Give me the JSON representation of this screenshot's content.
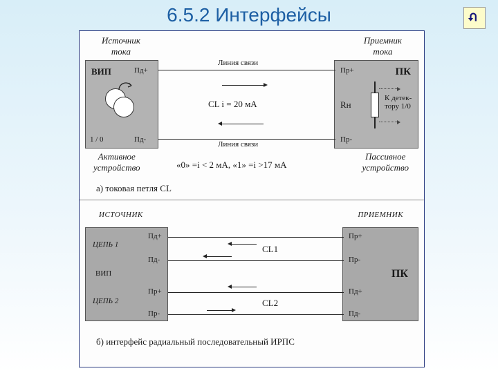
{
  "title": "6.5.2 Интерфейсы",
  "colors": {
    "title": "#1d5fa4",
    "bgTop": "#d8eef8",
    "bgBot": "#ffffff",
    "figBg": "#fdfdfd",
    "figBorder": "#2a3a80",
    "block": "#b3b3b3",
    "line": "#222222"
  },
  "panelA": {
    "source": {
      "title": "Источник\nтока",
      "box": "ВИП",
      "pinTop": "Пд+",
      "pinBot": "Пд-",
      "state": "1 / 0",
      "sub": "Активное\nустройство"
    },
    "dest": {
      "title": "Приемник\nтока",
      "box": "ПК",
      "pinTop": "Пр+",
      "pinBot": "Пр-",
      "load": "Rн",
      "det": "К детек-\nтору 1/0",
      "sub": "Пассивное\nустройство"
    },
    "linkLabel": "Линия связи",
    "center": "CL  i = 20 мА",
    "logic": "«0» =i < 2 мА,   «1» =i >17 мА",
    "caption": "а)  токовая петля CL"
  },
  "panelB": {
    "srcTitle": "ИСТОЧНИК",
    "dstTitle": "ПРИЕМНИК",
    "src": {
      "c1": "ЦЕПЬ 1",
      "c2": "ЦЕПЬ 2",
      "mid": "ВИП",
      "pins": [
        "Пд+",
        "Пд-",
        "Пр+",
        "Пр-"
      ]
    },
    "dst": {
      "box": "ПК",
      "pins": [
        "Пр+",
        "Пр-",
        "Пд+",
        "Пд-"
      ]
    },
    "cl1": "CL1",
    "cl2": "CL2",
    "caption": "б)  интерфейс радиальный последовательный ИРПС"
  }
}
